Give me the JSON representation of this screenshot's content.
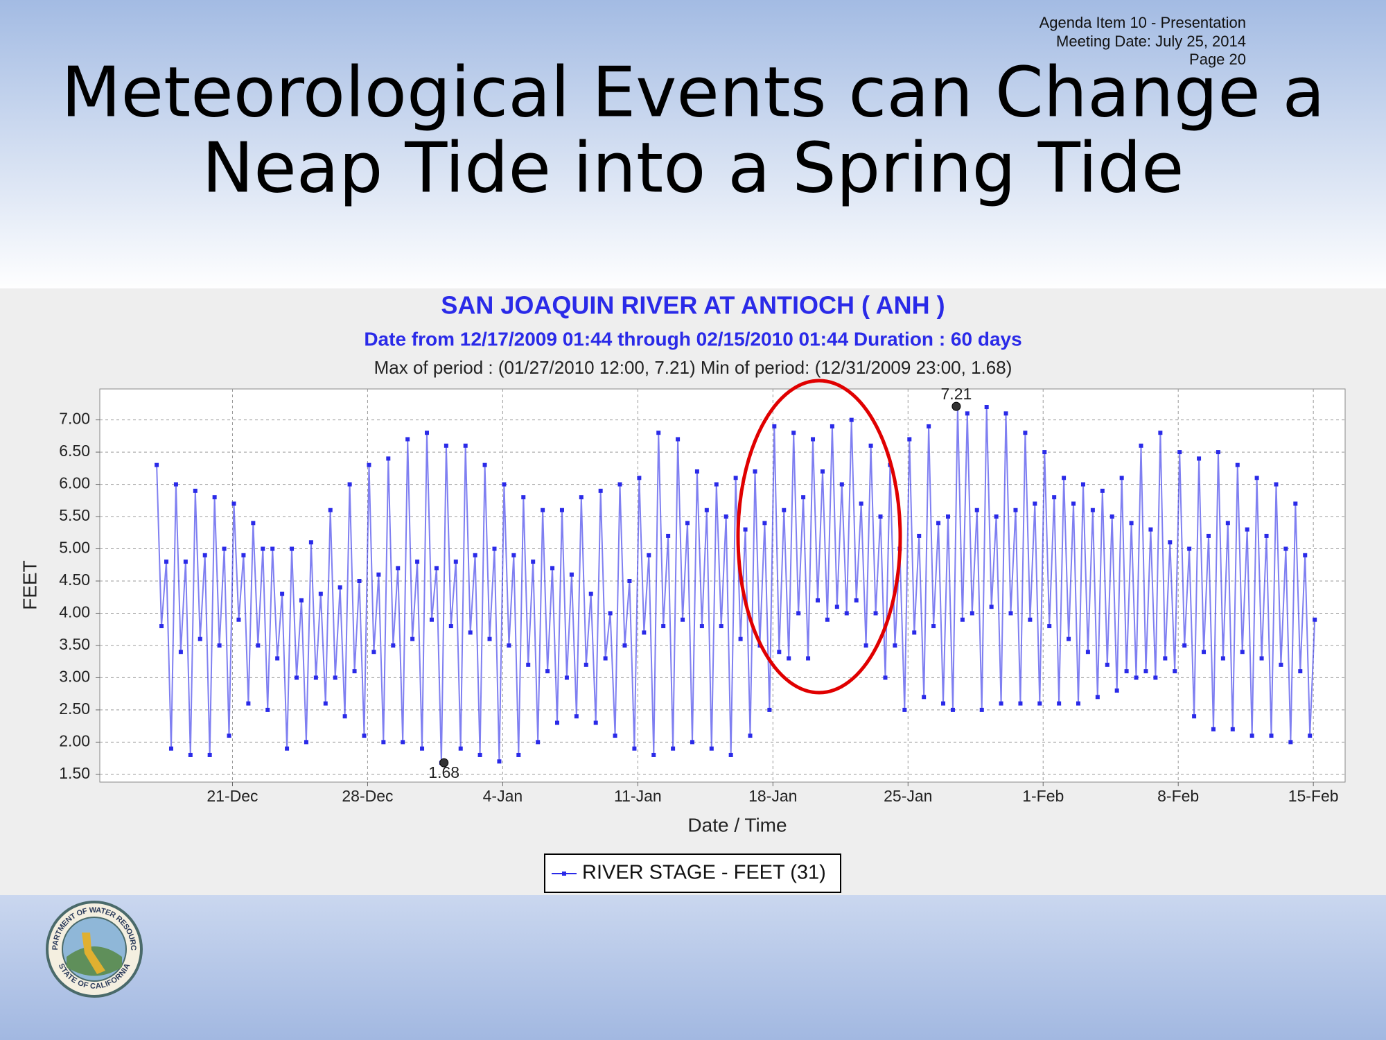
{
  "header": {
    "agenda": [
      "Agenda Item 10 - Presentation",
      "Meeting Date:  July 25, 2014",
      "Page 20"
    ],
    "title": [
      "Meteorological Events can Change a",
      "Neap Tide into a Spring Tide"
    ]
  },
  "logo": {
    "top": "DEPARTMENT OF WATER RESOURCES",
    "bottom": "STATE OF CALIFORNIA"
  },
  "chart_data": {
    "type": "line",
    "title": "SAN JOAQUIN RIVER AT ANTIOCH ( ANH )",
    "subtitle": "Date from 12/17/2009 01:44 through 02/15/2010 01:44 Duration : 60 days",
    "note": "Max of period : (01/27/2010 12:00, 7.21)  Min of period: (12/31/2009 23:00,  1.68)",
    "x_label": "Date / Time",
    "y_label": "FEET",
    "xlim": [
      "2009-12-14T03:00",
      "2010-02-16T15:30"
    ],
    "xticks": [
      {
        "value": "2009-12-21T00:00",
        "label": "21-Dec"
      },
      {
        "value": "2009-12-28T00:00",
        "label": "28-Dec"
      },
      {
        "value": "2010-01-04T00:00",
        "label": "4-Jan"
      },
      {
        "value": "2010-01-11T00:00",
        "label": "11-Jan"
      },
      {
        "value": "2010-01-18T00:00",
        "label": "18-Jan"
      },
      {
        "value": "2010-01-25T00:00",
        "label": "25-Jan"
      },
      {
        "value": "2010-02-01T00:00",
        "label": "1-Feb"
      },
      {
        "value": "2010-02-08T00:00",
        "label": "8-Feb"
      },
      {
        "value": "2010-02-15T00:00",
        "label": "15-Feb"
      }
    ],
    "ylim": [
      1.38,
      7.48
    ],
    "yticks": [
      {
        "value": 1.5,
        "label": "1.50"
      },
      {
        "value": 2,
        "label": "2.00"
      },
      {
        "value": 2.5,
        "label": "2.50"
      },
      {
        "value": 3,
        "label": "3.00"
      },
      {
        "value": 3.5,
        "label": "3.50"
      },
      {
        "value": 4,
        "label": "4.00"
      },
      {
        "value": 4.5,
        "label": "4.50"
      },
      {
        "value": 5,
        "label": "5.00"
      },
      {
        "value": 5.5,
        "label": "5.50"
      },
      {
        "value": 6,
        "label": "6.00"
      },
      {
        "value": 6.5,
        "label": "6.50"
      },
      {
        "value": 7,
        "label": "7.00"
      }
    ],
    "grid": true,
    "series": [
      {
        "name": "RIVER STAGE - FEET (31)",
        "color": "#2a2ae8",
        "start": "2009-12-17T01:44",
        "end": "2010-02-15T01:44",
        "values": [
          6.3,
          3.8,
          4.8,
          1.9,
          6.0,
          3.4,
          4.8,
          1.8,
          5.9,
          3.6,
          4.9,
          1.8,
          5.8,
          3.5,
          5.0,
          2.1,
          5.7,
          3.9,
          4.9,
          2.6,
          5.4,
          3.5,
          5.0,
          2.5,
          5.0,
          3.3,
          4.3,
          1.9,
          5.0,
          3.0,
          4.2,
          2.0,
          5.1,
          3.0,
          4.3,
          2.6,
          5.6,
          3.0,
          4.4,
          2.4,
          6.0,
          3.1,
          4.5,
          2.1,
          6.3,
          3.4,
          4.6,
          2.0,
          6.4,
          3.5,
          4.7,
          2.0,
          6.7,
          3.6,
          4.8,
          1.9,
          6.8,
          3.9,
          4.7,
          1.68,
          6.6,
          3.8,
          4.8,
          1.9,
          6.6,
          3.7,
          4.9,
          1.8,
          6.3,
          3.6,
          5.0,
          1.7,
          6.0,
          3.5,
          4.9,
          1.8,
          5.8,
          3.2,
          4.8,
          2.0,
          5.6,
          3.1,
          4.7,
          2.3,
          5.6,
          3.0,
          4.6,
          2.4,
          5.8,
          3.2,
          4.3,
          2.3,
          5.9,
          3.3,
          4.0,
          2.1,
          6.0,
          3.5,
          4.5,
          1.9,
          6.1,
          3.7,
          4.9,
          1.8,
          6.8,
          3.8,
          5.2,
          1.9,
          6.7,
          3.9,
          5.4,
          2.0,
          6.2,
          3.8,
          5.6,
          1.9,
          6.0,
          3.8,
          5.5,
          1.8,
          6.1,
          3.6,
          5.3,
          2.1,
          6.2,
          3.5,
          5.4,
          2.5,
          6.9,
          3.4,
          5.6,
          3.3,
          6.8,
          4.0,
          5.8,
          3.3,
          6.7,
          4.2,
          6.2,
          3.9,
          6.9,
          4.1,
          6.0,
          4.0,
          7.0,
          4.2,
          5.7,
          3.5,
          6.6,
          4.0,
          5.5,
          3.0,
          6.3,
          3.5,
          5.0,
          2.5,
          6.7,
          3.7,
          5.2,
          2.7,
          6.9,
          3.8,
          5.4,
          2.6,
          5.5,
          2.5,
          7.21,
          3.9,
          7.1,
          4.0,
          5.6,
          2.5,
          7.2,
          4.1,
          5.5,
          2.6,
          7.1,
          4.0,
          5.6,
          2.6,
          6.8,
          3.9,
          5.7,
          2.6,
          6.5,
          3.8,
          5.8,
          2.6,
          6.1,
          3.6,
          5.7,
          2.6,
          6.0,
          3.4,
          5.6,
          2.7,
          5.9,
          3.2,
          5.5,
          2.8,
          6.1,
          3.1,
          5.4,
          3.0,
          6.6,
          3.1,
          5.3,
          3.0,
          6.8,
          3.3,
          5.1,
          3.1,
          6.5,
          3.5,
          5.0,
          2.4,
          6.4,
          3.4,
          5.2,
          2.2,
          6.5,
          3.3,
          5.4,
          2.2,
          6.3,
          3.4,
          5.3,
          2.1,
          6.1,
          3.3,
          5.2,
          2.1,
          6.0,
          3.2,
          5.0,
          2.0,
          5.7,
          3.1,
          4.9,
          2.1,
          3.9
        ]
      }
    ],
    "annotations": [
      {
        "label": "7.21",
        "x": "2010-01-27T12:00",
        "y": 7.21
      },
      {
        "label": "1.68",
        "x": "2009-12-31T23:00",
        "y": 1.68
      }
    ]
  }
}
